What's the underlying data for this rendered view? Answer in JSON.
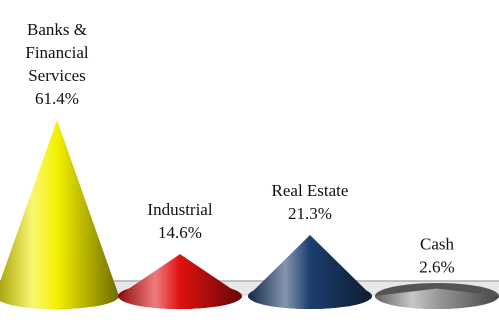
{
  "chart_data": {
    "type": "bar",
    "shape": "cone",
    "title": "",
    "xlabel": "",
    "ylabel": "",
    "grid": false,
    "legend": "none",
    "categories": [
      [
        "Banks &",
        "Financial",
        "Services"
      ],
      [
        "Industrial"
      ],
      [
        "Real Estate"
      ],
      [
        "Cash"
      ]
    ],
    "values": [
      61.4,
      14.6,
      21.3,
      2.6
    ],
    "value_labels": [
      "61.4%",
      "14.6%",
      "21.3%",
      "2.6%"
    ],
    "colors": [
      "#f4f000",
      "#e01010",
      "#1d3e6e",
      "#9a9a9a"
    ],
    "ylim": [
      0,
      61.4
    ]
  }
}
